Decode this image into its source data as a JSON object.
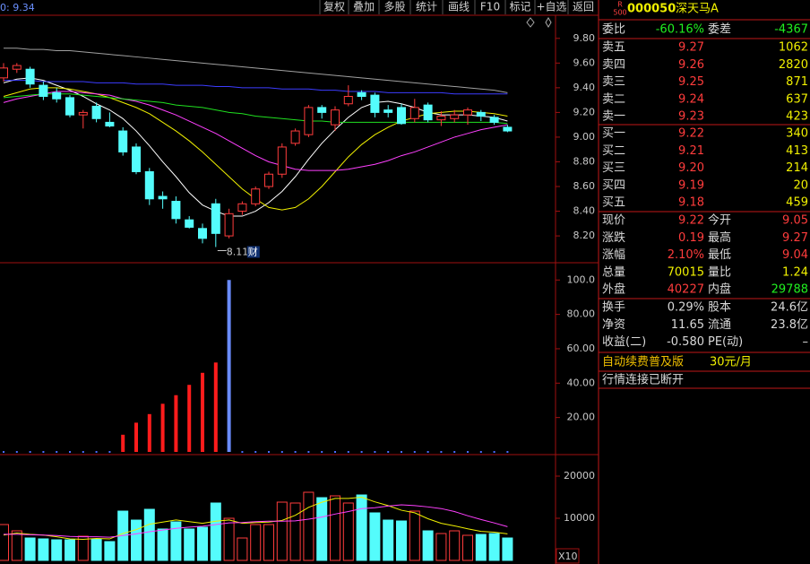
{
  "toolbar": [
    "复权",
    "叠加",
    "多股",
    "统计",
    "画线",
    "F10",
    "标记",
    "+自选",
    "返回"
  ],
  "chart_data": [
    {
      "type": "candlestick",
      "info": "0: 9.34",
      "annotations": [
        "8.11",
        "财"
      ],
      "up_color": "#ff3c3c",
      "down_color": "#54fcfc",
      "open": [
        9.48,
        9.55,
        9.55,
        9.42,
        9.36,
        9.32,
        9.18,
        9.25,
        9.12,
        9.05,
        8.92,
        8.72,
        8.52,
        8.48,
        8.33,
        8.26,
        8.46,
        8.2,
        8.4,
        8.46,
        8.6,
        8.7,
        8.95,
        9.02,
        9.24,
        9.1,
        9.27,
        9.36,
        9.34,
        9.22,
        9.24,
        9.15,
        9.26,
        9.14,
        9.15,
        9.18,
        9.2,
        9.16,
        9.08
      ],
      "high": [
        9.6,
        9.6,
        9.57,
        9.45,
        9.4,
        9.34,
        9.22,
        9.28,
        9.2,
        9.08,
        8.95,
        8.75,
        8.56,
        8.52,
        8.36,
        8.3,
        8.5,
        8.42,
        8.48,
        8.6,
        8.72,
        8.95,
        9.07,
        9.26,
        9.26,
        9.25,
        9.42,
        9.38,
        9.36,
        9.26,
        9.27,
        9.31,
        9.28,
        9.21,
        9.22,
        9.24,
        9.22,
        9.18,
        9.1
      ],
      "low": [
        9.45,
        9.52,
        9.4,
        9.3,
        9.28,
        9.16,
        9.07,
        9.12,
        9.08,
        8.85,
        8.7,
        8.45,
        8.42,
        8.3,
        8.26,
        8.14,
        8.11,
        8.18,
        8.37,
        8.44,
        8.58,
        8.67,
        8.93,
        9.0,
        9.15,
        9.05,
        9.25,
        9.3,
        9.16,
        9.16,
        9.1,
        9.12,
        9.12,
        9.09,
        9.12,
        9.1,
        9.13,
        9.1,
        9.04
      ],
      "close": [
        9.56,
        9.58,
        9.43,
        9.33,
        9.31,
        9.18,
        9.2,
        9.15,
        9.09,
        8.88,
        8.72,
        8.5,
        8.5,
        8.34,
        8.27,
        8.18,
        8.22,
        8.38,
        8.46,
        8.58,
        8.7,
        8.92,
        9.05,
        9.24,
        9.2,
        9.22,
        9.33,
        9.33,
        9.2,
        9.2,
        9.11,
        9.24,
        9.14,
        9.17,
        9.18,
        9.22,
        9.17,
        9.12,
        9.05
      ],
      "series": [
        {
          "color": "#ffffff",
          "values": [
            9.44,
            9.47,
            9.48,
            9.46,
            9.42,
            9.38,
            9.33,
            9.27,
            9.22,
            9.15,
            9.05,
            8.93,
            8.8,
            8.68,
            8.55,
            8.45,
            8.4,
            8.36,
            8.36,
            8.4,
            8.47,
            8.56,
            8.68,
            8.82,
            8.95,
            9.06,
            9.16,
            9.24,
            9.28,
            9.29,
            9.27,
            9.24,
            9.2,
            9.18,
            9.18,
            9.18,
            9.17,
            9.16,
            9.13
          ]
        },
        {
          "color": "#f0f000",
          "values": [
            9.33,
            9.36,
            9.39,
            9.4,
            9.4,
            9.39,
            9.37,
            9.35,
            9.32,
            9.28,
            9.24,
            9.19,
            9.12,
            9.05,
            8.97,
            8.88,
            8.78,
            8.68,
            8.58,
            8.5,
            8.43,
            8.41,
            8.43,
            8.5,
            8.6,
            8.72,
            8.84,
            8.94,
            9.02,
            9.08,
            9.13,
            9.16,
            9.19,
            9.2,
            9.21,
            9.21,
            9.2,
            9.19,
            9.17
          ]
        },
        {
          "color": "#ff40ff",
          "values": [
            9.28,
            9.31,
            9.33,
            9.35,
            9.37,
            9.37,
            9.36,
            9.35,
            9.34,
            9.31,
            9.29,
            9.26,
            9.22,
            9.18,
            9.13,
            9.08,
            9.03,
            8.97,
            8.91,
            8.85,
            8.8,
            8.77,
            8.74,
            8.73,
            8.73,
            8.73,
            8.74,
            8.76,
            8.78,
            8.81,
            8.85,
            8.88,
            8.92,
            8.96,
            9.0,
            9.03,
            9.06,
            9.08,
            9.1
          ]
        },
        {
          "color": "#20e020",
          "values": [
            9.32,
            9.33,
            9.34,
            9.35,
            9.35,
            9.35,
            9.34,
            9.33,
            9.32,
            9.31,
            9.3,
            9.29,
            9.28,
            9.26,
            9.25,
            9.24,
            9.22,
            9.2,
            9.19,
            9.17,
            9.16,
            9.15,
            9.14,
            9.13,
            9.13,
            9.12,
            9.12,
            9.12,
            9.12,
            9.12,
            9.12,
            9.12,
            9.12,
            9.12,
            9.12,
            9.12,
            9.12,
            9.12,
            9.11
          ]
        },
        {
          "color": "#3c3cff",
          "values": [
            9.46,
            9.46,
            9.46,
            9.45,
            9.45,
            9.45,
            9.45,
            9.44,
            9.44,
            9.44,
            9.43,
            9.43,
            9.43,
            9.42,
            9.42,
            9.42,
            9.41,
            9.41,
            9.4,
            9.4,
            9.4,
            9.39,
            9.39,
            9.39,
            9.38,
            9.38,
            9.37,
            9.37,
            9.37,
            9.36,
            9.36,
            9.36,
            9.36,
            9.36,
            9.35,
            9.35,
            9.35,
            9.35,
            9.35
          ]
        },
        {
          "color": "#a0a0a0",
          "values": [
            9.72,
            9.72,
            9.71,
            9.71,
            9.7,
            9.7,
            9.69,
            9.68,
            9.67,
            9.66,
            9.65,
            9.64,
            9.63,
            9.62,
            9.61,
            9.6,
            9.59,
            9.58,
            9.57,
            9.56,
            9.55,
            9.54,
            9.53,
            9.52,
            9.51,
            9.5,
            9.49,
            9.48,
            9.47,
            9.46,
            9.45,
            9.44,
            9.43,
            9.42,
            9.41,
            9.4,
            9.39,
            9.38,
            9.36
          ]
        }
      ],
      "ylim": [
        7.99,
        9.98
      ],
      "yticks": [
        {
          "value": 8.2,
          "label": "8.20"
        },
        {
          "value": 8.4,
          "label": "8.40"
        },
        {
          "value": 8.6,
          "label": "8.60"
        },
        {
          "value": 8.8,
          "label": "8.80"
        },
        {
          "value": 9.0,
          "label": "9.00"
        },
        {
          "value": 9.2,
          "label": "9.20"
        },
        {
          "value": 9.4,
          "label": "9.40"
        },
        {
          "value": 9.6,
          "label": "9.60"
        },
        {
          "value": 9.8,
          "label": "9.80"
        }
      ]
    },
    {
      "type": "bar",
      "values": [
        0,
        0,
        0,
        0,
        0,
        0,
        0,
        0,
        0,
        10,
        17,
        22,
        28,
        33,
        39,
        46,
        52,
        100,
        0,
        0,
        0,
        0,
        0,
        0,
        0,
        0,
        0,
        0,
        0,
        0,
        0,
        0,
        0,
        0,
        0,
        0,
        0,
        0,
        0
      ],
      "colors": [
        "#4a6cff",
        "#4a6cff",
        "#4a6cff",
        "#4a6cff",
        "#4a6cff",
        "#4a6cff",
        "#4a6cff",
        "#4a6cff",
        "#4a6cff",
        "#ff1c1c",
        "#ff1c1c",
        "#ff1c1c",
        "#ff1c1c",
        "#ff1c1c",
        "#ff1c1c",
        "#ff1c1c",
        "#ff1c1c",
        "#6a8cff",
        "#4a6cff",
        "#4a6cff",
        "#4a6cff",
        "#4a6cff",
        "#4a6cff",
        "#4a6cff",
        "#4a6cff",
        "#4a6cff",
        "#4a6cff",
        "#4a6cff",
        "#4a6cff",
        "#4a6cff",
        "#4a6cff",
        "#4a6cff",
        "#4a6cff",
        "#4a6cff",
        "#4a6cff",
        "#4a6cff",
        "#4a6cff",
        "#4a6cff",
        "#4a6cff"
      ],
      "ylim": [
        0,
        109
      ],
      "yticks": [
        {
          "value": 20,
          "label": "20.00"
        },
        {
          "value": 40,
          "label": "40.00"
        },
        {
          "value": 60,
          "label": "60.00"
        },
        {
          "value": 80,
          "label": "80.00"
        },
        {
          "value": 100,
          "label": "100.0"
        }
      ]
    },
    {
      "type": "volume",
      "scale_label": "X10",
      "values": [
        8510,
        7020,
        5320,
        5110,
        4890,
        4890,
        5740,
        5110,
        4470,
        11700,
        9570,
        12130,
        7450,
        9150,
        7450,
        7870,
        13620,
        10000,
        5320,
        8510,
        8510,
        13830,
        13620,
        16170,
        14890,
        15320,
        13620,
        15530,
        11280,
        9570,
        9360,
        11700,
        7020,
        6380,
        7020,
        5960,
        6170,
        6380,
        5320
      ],
      "series": [
        {
          "color": "#f0f000",
          "values": [
            6000,
            6500,
            6200,
            6000,
            5600,
            5100,
            5000,
            5200,
            5100,
            6400,
            7300,
            8600,
            9100,
            9600,
            9200,
            8800,
            9300,
            9600,
            8800,
            9000,
            9100,
            9500,
            10700,
            12600,
            13800,
            14700,
            14700,
            15000,
            13900,
            13000,
            11900,
            11300,
            9900,
            8800,
            8200,
            7500,
            6900,
            6700,
            6300
          ]
        },
        {
          "color": "#ff40ff",
          "values": [
            6200,
            6200,
            6100,
            6000,
            5900,
            5700,
            5600,
            5600,
            5500,
            5900,
            6300,
            6800,
            7200,
            7600,
            7900,
            8100,
            8500,
            8900,
            9000,
            9200,
            9300,
            9300,
            9400,
            9800,
            10300,
            11000,
            11600,
            12300,
            12500,
            12900,
            13200,
            13000,
            12700,
            12300,
            11600,
            10600,
            9700,
            8900,
            8000
          ]
        }
      ],
      "ylim": [
        0,
        24470
      ],
      "yticks": [
        10000,
        20000
      ]
    }
  ],
  "quote": {
    "badge": [
      "R",
      "500"
    ],
    "code": "000050",
    "name": "深天马A",
    "ratio": [
      "委比",
      "-60.16%",
      "委差",
      "-4367"
    ],
    "asks": [
      [
        "卖五",
        "9.27",
        "1062"
      ],
      [
        "卖四",
        "9.26",
        "2820"
      ],
      [
        "卖三",
        "9.25",
        "871"
      ],
      [
        "卖二",
        "9.24",
        "637"
      ],
      [
        "卖一",
        "9.23",
        "423"
      ]
    ],
    "bids": [
      [
        "买一",
        "9.22",
        "340"
      ],
      [
        "买二",
        "9.21",
        "413"
      ],
      [
        "买三",
        "9.20",
        "214"
      ],
      [
        "买四",
        "9.19",
        "20"
      ],
      [
        "买五",
        "9.18",
        "459"
      ]
    ],
    "stats": [
      [
        "现价",
        "9.22",
        "今开",
        "9.05"
      ],
      [
        "涨跌",
        "0.19",
        "最高",
        "9.27"
      ],
      [
        "涨幅",
        "2.10%",
        "最低",
        "9.04"
      ],
      [
        "总量",
        "70015",
        "量比",
        "1.24"
      ],
      [
        "外盘",
        "40227",
        "内盘",
        "29788"
      ]
    ],
    "fund": [
      [
        "换手",
        "0.29%",
        "股本",
        "24.6亿"
      ],
      [
        "净资",
        "11.65",
        "流通",
        "23.8亿"
      ],
      [
        "收益(二)",
        "-0.580",
        "PE(动)",
        "–"
      ]
    ],
    "promo": [
      "自动续费普及版",
      "30元/月"
    ],
    "status": "行情连接已断开"
  }
}
